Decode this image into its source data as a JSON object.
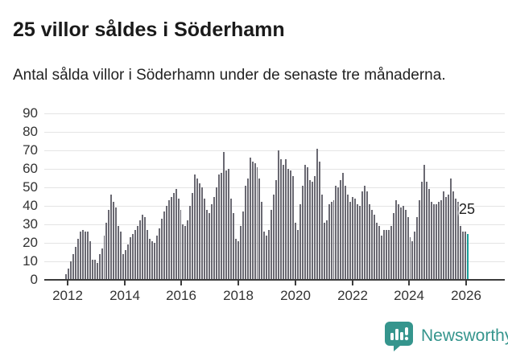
{
  "header": {
    "title": "25 villor såldes i Söderhamn",
    "subtitle": "Antal sålda villor i Söderhamn under de senaste tre månaderna."
  },
  "chart_data": {
    "type": "bar",
    "title": "25 villor såldes i Söderhamn",
    "subtitle": "Antal sålda villor i Söderhamn under de senaste tre månaderna.",
    "unit": "sålda villor (rullande 3 månader)",
    "grid": "horizontal",
    "legend": "none",
    "ylim": [
      0,
      90
    ],
    "y_ticks": [
      0,
      10,
      20,
      30,
      40,
      50,
      60,
      70,
      80,
      90
    ],
    "x_tick_labels": [
      "2012",
      "2014",
      "2016",
      "2018",
      "2020",
      "2022",
      "2024",
      "2026"
    ],
    "x_range": [
      "2012-01",
      "2026-01"
    ],
    "series": [
      {
        "name": "Antal sålda villor",
        "values_by_year": {
          "2012": [
            3,
            6,
            10,
            14,
            18,
            22,
            26,
            27,
            26,
            26,
            21,
            11
          ],
          "2013": [
            11,
            9,
            14,
            17,
            24,
            31,
            38,
            46,
            42,
            39,
            29,
            26
          ],
          "2014": [
            14,
            16,
            19,
            23,
            25,
            27,
            29,
            32,
            35,
            34,
            27,
            22
          ],
          "2015": [
            21,
            20,
            24,
            28,
            33,
            37,
            40,
            43,
            45,
            47,
            49,
            44
          ],
          "2016": [
            38,
            30,
            29,
            32,
            40,
            47,
            57,
            55,
            52,
            50,
            44,
            38
          ],
          "2017": [
            36,
            41,
            45,
            50,
            57,
            58,
            69,
            59,
            60,
            44,
            36,
            22
          ],
          "2018": [
            21,
            29,
            37,
            51,
            55,
            66,
            64,
            63,
            61,
            55,
            42,
            26
          ],
          "2019": [
            24,
            27,
            38,
            46,
            54,
            70,
            65,
            62,
            65,
            60,
            59,
            56
          ],
          "2020": [
            31,
            27,
            41,
            51,
            62,
            61,
            54,
            53,
            56,
            71,
            64,
            46
          ],
          "2021": [
            31,
            32,
            41,
            42,
            43,
            51,
            50,
            54,
            58,
            51,
            46,
            42
          ],
          "2022": [
            45,
            44,
            41,
            40,
            48,
            51,
            48,
            41,
            38,
            35,
            31,
            29
          ],
          "2023": [
            24,
            27,
            27,
            27,
            29,
            36,
            43,
            41,
            39,
            40,
            38,
            34
          ],
          "2024": [
            23,
            21,
            26,
            34,
            43,
            53,
            62,
            53,
            49,
            42,
            41,
            41
          ],
          "2025": [
            42,
            43,
            48,
            45,
            46,
            55,
            48,
            44,
            42,
            29,
            26,
            26
          ],
          "2026": [
            25
          ]
        }
      }
    ],
    "highlight": {
      "position": "last",
      "value": 25,
      "label": "25"
    }
  },
  "footer": {
    "brand": "Newsworthy",
    "logo_icon": "bar-chart-speech-bubble-icon"
  },
  "colors": {
    "bar": "#6a6972",
    "highlight": "#1aa09a",
    "grid": "#e4e4e4",
    "axis": "#3c3c3c",
    "tick_text": "#333333",
    "title_text": "#1a1a1a",
    "brand": "#35958d"
  }
}
